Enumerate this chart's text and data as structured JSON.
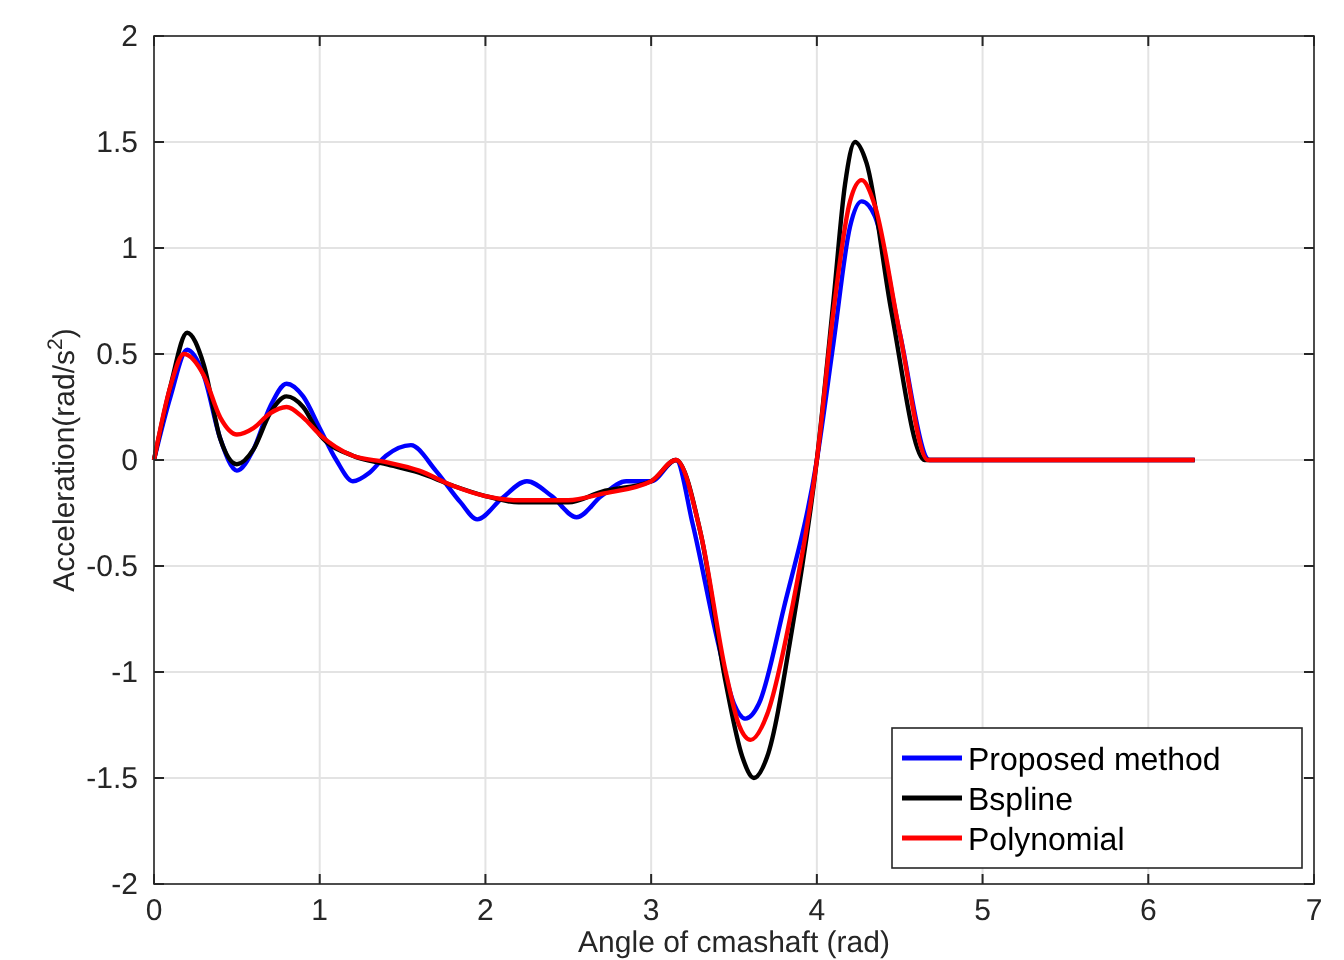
{
  "chart_data": {
    "type": "line",
    "xlabel": "Angle of cmashaft (rad)",
    "ylabel": "Acceleration(rad/s$^{2}$)",
    "xlim": [
      0,
      7
    ],
    "ylim": [
      -2,
      2
    ],
    "xticks": [
      0,
      1,
      2,
      3,
      4,
      5,
      6,
      7
    ],
    "yticks": [
      -2,
      -1.5,
      -1,
      -0.5,
      0,
      0.5,
      1,
      1.5,
      2
    ],
    "grid": true,
    "legend": "bottom right",
    "line_style": "solid",
    "marker": "none",
    "series": [
      {
        "name": "Proposed method",
        "color": "#0000ff",
        "x": [
          0,
          0.1,
          0.2,
          0.3,
          0.4,
          0.5,
          0.6,
          0.7,
          0.8,
          0.9,
          1.0,
          1.1,
          1.2,
          1.3,
          1.4,
          1.55,
          1.7,
          1.85,
          1.95,
          2.1,
          2.25,
          2.4,
          2.55,
          2.7,
          2.85,
          3.0,
          3.15,
          3.25,
          3.4,
          3.5,
          3.57,
          3.65,
          3.8,
          4.0,
          4.1,
          4.2,
          4.27,
          4.35,
          4.5,
          4.68,
          6.28
        ],
        "values": [
          0,
          0.3,
          0.52,
          0.4,
          0.1,
          -0.05,
          0.05,
          0.25,
          0.36,
          0.3,
          0.15,
          0,
          -0.1,
          -0.06,
          0.02,
          0.07,
          -0.05,
          -0.2,
          -0.28,
          -0.18,
          -0.1,
          -0.17,
          -0.27,
          -0.17,
          -0.1,
          -0.1,
          0,
          -0.3,
          -0.85,
          -1.15,
          -1.22,
          -1.15,
          -0.7,
          0,
          0.55,
          1.1,
          1.22,
          1.15,
          0.6,
          0,
          0
        ]
      },
      {
        "name": "Bspline",
        "color": "#000000",
        "x": [
          0,
          0.1,
          0.2,
          0.3,
          0.4,
          0.5,
          0.6,
          0.7,
          0.8,
          0.9,
          1.0,
          1.2,
          1.4,
          1.6,
          1.8,
          2.0,
          2.2,
          2.5,
          2.7,
          3.0,
          3.15,
          3.3,
          3.45,
          3.55,
          3.62,
          3.7,
          3.85,
          4.0,
          4.1,
          4.17,
          4.23,
          4.3,
          4.45,
          4.65,
          6.28
        ],
        "values": [
          0,
          0.35,
          0.6,
          0.45,
          0.1,
          -0.02,
          0.05,
          0.22,
          0.3,
          0.25,
          0.12,
          0.02,
          -0.02,
          -0.06,
          -0.12,
          -0.17,
          -0.2,
          -0.2,
          -0.15,
          -0.1,
          0,
          -0.35,
          -1.05,
          -1.4,
          -1.5,
          -1.4,
          -0.8,
          0,
          0.75,
          1.3,
          1.5,
          1.4,
          0.7,
          0,
          0
        ]
      },
      {
        "name": "Polynomial",
        "color": "#ff0000",
        "x": [
          0,
          0.1,
          0.18,
          0.3,
          0.4,
          0.5,
          0.6,
          0.7,
          0.8,
          0.9,
          1.0,
          1.2,
          1.4,
          1.6,
          1.8,
          2.0,
          2.2,
          2.5,
          2.7,
          3.0,
          3.15,
          3.3,
          3.45,
          3.53,
          3.6,
          3.7,
          3.85,
          4.0,
          4.1,
          4.2,
          4.27,
          4.35,
          4.5,
          4.67,
          6.28
        ],
        "values": [
          0,
          0.35,
          0.5,
          0.4,
          0.2,
          0.12,
          0.15,
          0.22,
          0.25,
          0.2,
          0.12,
          0.02,
          -0.01,
          -0.05,
          -0.12,
          -0.17,
          -0.19,
          -0.19,
          -0.16,
          -0.1,
          0,
          -0.35,
          -1.0,
          -1.25,
          -1.32,
          -1.2,
          -0.7,
          0,
          0.7,
          1.22,
          1.32,
          1.2,
          0.6,
          0,
          0
        ]
      }
    ]
  }
}
